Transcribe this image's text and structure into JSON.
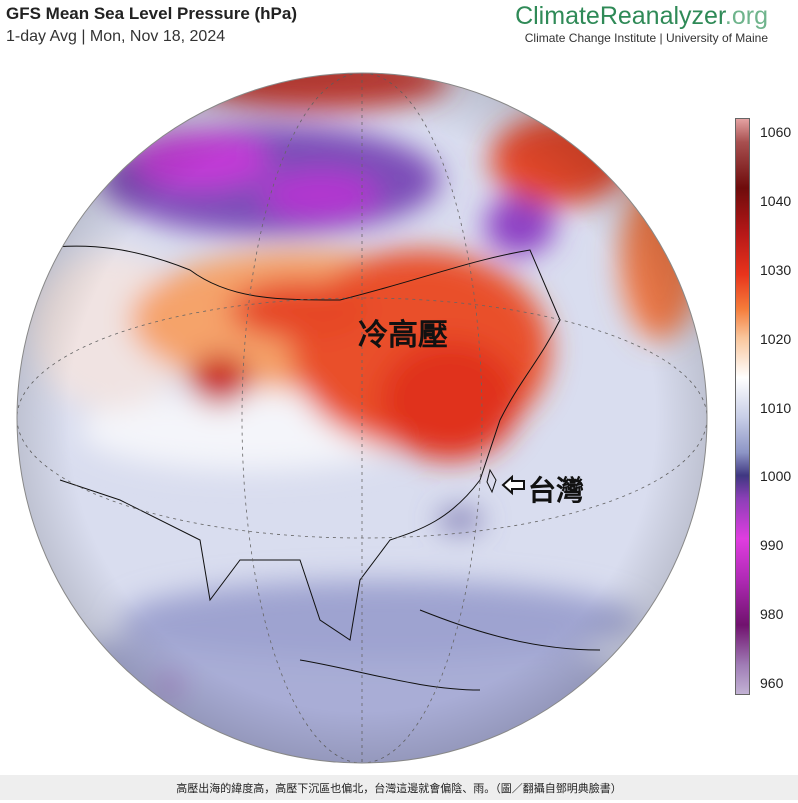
{
  "header": {
    "title": "GFS Mean Sea Level Pressure (hPa)",
    "subtitle": "1-day Avg | Mon, Nov 18, 2024"
  },
  "logo": {
    "parts": [
      "ClimateReanalyzer",
      ".org"
    ],
    "tagline": "Climate Change Institute | University of Maine"
  },
  "colorbar": {
    "ticks": [
      "1060",
      "1040",
      "1030",
      "1020",
      "1010",
      "1000",
      "990",
      "980",
      "960"
    ]
  },
  "annotations": {
    "high": "冷高壓",
    "taiwan": "台灣"
  },
  "caption": "高壓出海的緯度高，高壓下沉區也偏北，台灣這邊就會偏陰、雨。（圖／翻攝自鄧明典臉書）"
}
